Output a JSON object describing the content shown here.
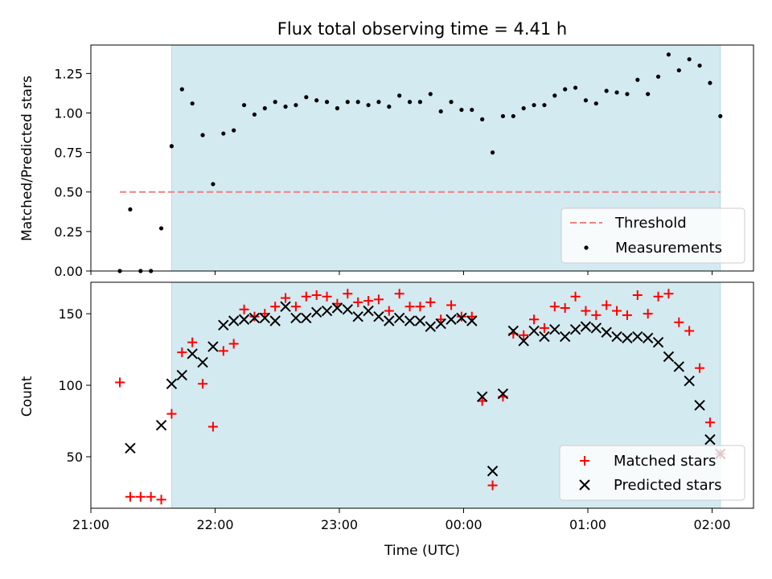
{
  "chart_data": [
    {
      "type": "scatter",
      "title": "Flux total observing time = 4.41 h",
      "ylabel": "Matched/Predicted stars",
      "xlim": [
        "21:00",
        "02:20"
      ],
      "ylim": [
        0,
        1.43
      ],
      "yticks": [
        0.0,
        0.25,
        0.5,
        0.75,
        1.0,
        1.25
      ],
      "ytick_labels": [
        "0.00",
        "0.25",
        "0.50",
        "0.75",
        "1.00",
        "1.25"
      ],
      "shaded_region": {
        "start": "21:39",
        "end": "02:04",
        "color": "#d4eaf1"
      },
      "threshold": {
        "name": "Threshold",
        "value": 0.5,
        "start": "21:14",
        "end": "02:04",
        "color": "#f08080"
      },
      "legend": {
        "placement": "lower-right",
        "entries": [
          "Threshold",
          "Measurements"
        ]
      },
      "series": [
        {
          "name": "Measurements",
          "marker": "dot",
          "color": "#000000",
          "x": [
            "21:14",
            "21:19",
            "21:24",
            "21:29",
            "21:34",
            "21:39",
            "21:44",
            "21:49",
            "21:54",
            "21:59",
            "22:04",
            "22:09",
            "22:14",
            "22:19",
            "22:24",
            "22:29",
            "22:34",
            "22:39",
            "22:44",
            "22:49",
            "22:54",
            "22:59",
            "23:04",
            "23:09",
            "23:14",
            "23:19",
            "23:24",
            "23:29",
            "23:34",
            "23:39",
            "23:44",
            "23:49",
            "23:54",
            "23:59",
            "00:04",
            "00:09",
            "00:14",
            "00:19",
            "00:24",
            "00:29",
            "00:34",
            "00:39",
            "00:44",
            "00:49",
            "00:54",
            "00:59",
            "01:04",
            "01:09",
            "01:14",
            "01:19",
            "01:24",
            "01:29",
            "01:34",
            "01:39",
            "01:44",
            "01:49",
            "01:54",
            "01:59",
            "02:04"
          ],
          "y": [
            0.0,
            0.39,
            0.0,
            0.0,
            0.27,
            0.79,
            1.15,
            1.06,
            0.86,
            0.55,
            0.87,
            0.89,
            1.05,
            0.99,
            1.03,
            1.07,
            1.04,
            1.05,
            1.1,
            1.08,
            1.07,
            1.03,
            1.07,
            1.07,
            1.05,
            1.07,
            1.04,
            1.11,
            1.07,
            1.07,
            1.12,
            1.01,
            1.07,
            1.02,
            1.02,
            0.96,
            0.75,
            0.98,
            0.98,
            1.03,
            1.05,
            1.05,
            1.11,
            1.15,
            1.16,
            1.08,
            1.06,
            1.14,
            1.13,
            1.12,
            1.21,
            1.12,
            1.23,
            1.37,
            1.27,
            1.34,
            1.3,
            1.19,
            0.98
          ]
        }
      ]
    },
    {
      "type": "scatter",
      "xlabel": "Time (UTC)",
      "ylabel": "Count",
      "xlim": [
        "21:00",
        "02:20"
      ],
      "ylim": [
        14,
        172
      ],
      "xticks": [
        "21:00",
        "22:00",
        "23:00",
        "00:00",
        "01:00",
        "02:00"
      ],
      "yticks": [
        50,
        100,
        150
      ],
      "ytick_labels": [
        "50",
        "100",
        "150"
      ],
      "shaded_region": {
        "start": "21:39",
        "end": "02:04",
        "color": "#d4eaf1"
      },
      "legend": {
        "placement": "lower-right",
        "entries": [
          "Matched stars",
          "Predicted stars"
        ]
      },
      "series": [
        {
          "name": "Matched stars",
          "marker": "plus",
          "color": "#ff0000",
          "x": [
            "21:14",
            "21:19",
            "21:24",
            "21:29",
            "21:34",
            "21:39",
            "21:44",
            "21:49",
            "21:54",
            "21:59",
            "22:04",
            "22:09",
            "22:14",
            "22:19",
            "22:24",
            "22:29",
            "22:34",
            "22:39",
            "22:44",
            "22:49",
            "22:54",
            "22:59",
            "23:04",
            "23:09",
            "23:14",
            "23:19",
            "23:24",
            "23:29",
            "23:34",
            "23:39",
            "23:44",
            "23:49",
            "23:54",
            "23:59",
            "00:04",
            "00:09",
            "00:14",
            "00:19",
            "00:24",
            "00:29",
            "00:34",
            "00:39",
            "00:44",
            "00:49",
            "00:54",
            "00:59",
            "01:04",
            "01:09",
            "01:14",
            "01:19",
            "01:24",
            "01:29",
            "01:34",
            "01:39",
            "01:44",
            "01:49",
            "01:54",
            "01:59",
            "02:04"
          ],
          "y": [
            102,
            22,
            22,
            22,
            20,
            80,
            123,
            130,
            101,
            71,
            124,
            129,
            153,
            148,
            150,
            155,
            161,
            155,
            162,
            163,
            162,
            157,
            164,
            158,
            159,
            160,
            152,
            164,
            155,
            155,
            158,
            146,
            156,
            148,
            148,
            89,
            30,
            92,
            136,
            135,
            146,
            140,
            155,
            154,
            162,
            152,
            149,
            156,
            152,
            149,
            163,
            150,
            162,
            164,
            144,
            138,
            112,
            74,
            52
          ]
        },
        {
          "name": "Predicted stars",
          "marker": "x",
          "color": "#000000",
          "x": [
            "21:19",
            "21:34",
            "21:39",
            "21:44",
            "21:49",
            "21:54",
            "21:59",
            "22:04",
            "22:09",
            "22:14",
            "22:19",
            "22:24",
            "22:29",
            "22:34",
            "22:39",
            "22:44",
            "22:49",
            "22:54",
            "22:59",
            "23:04",
            "23:09",
            "23:14",
            "23:19",
            "23:24",
            "23:29",
            "23:34",
            "23:39",
            "23:44",
            "23:49",
            "23:54",
            "23:59",
            "00:04",
            "00:09",
            "00:14",
            "00:19",
            "00:24",
            "00:29",
            "00:34",
            "00:39",
            "00:44",
            "00:49",
            "00:54",
            "00:59",
            "01:04",
            "01:09",
            "01:14",
            "01:19",
            "01:24",
            "01:29",
            "01:34",
            "01:39",
            "01:44",
            "01:49",
            "01:54",
            "01:59",
            "02:04"
          ],
          "y": [
            56,
            72,
            101,
            107,
            122,
            116,
            127,
            142,
            145,
            146,
            147,
            147,
            145,
            155,
            147,
            147,
            151,
            152,
            154,
            153,
            148,
            152,
            148,
            145,
            147,
            145,
            145,
            141,
            143,
            146,
            147,
            145,
            92,
            40,
            94,
            138,
            131,
            138,
            134,
            139,
            134,
            139,
            141,
            140,
            137,
            134,
            133,
            134,
            133,
            130,
            120,
            113,
            103,
            86,
            62,
            52
          ]
        }
      ]
    }
  ]
}
